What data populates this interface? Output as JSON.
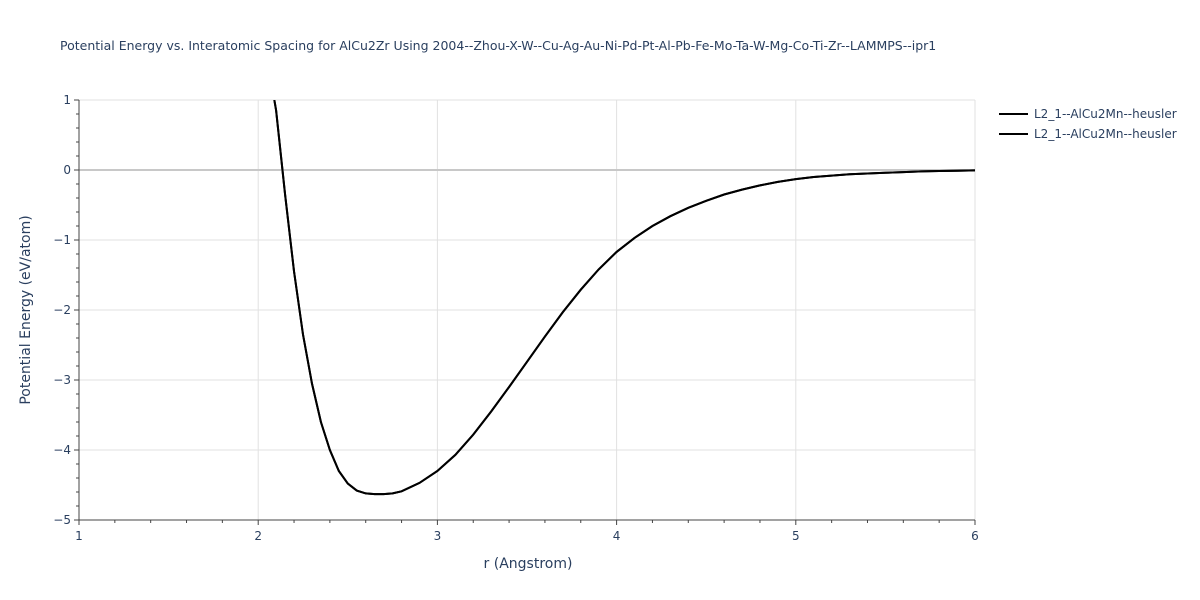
{
  "chart_data": {
    "type": "line",
    "title": "Potential Energy vs. Interatomic Spacing for AlCu2Zr Using 2004--Zhou-X-W--Cu-Ag-Au-Ni-Pd-Pt-Al-Pb-Fe-Mo-Ta-W-Mg-Co-Ti-Zr--LAMMPS--ipr1",
    "xlabel": "r (Angstrom)",
    "ylabel": "Potential Energy (eV/atom)",
    "xlim": [
      1,
      6
    ],
    "ylim": [
      -5,
      1
    ],
    "x_ticks": [
      1,
      2,
      3,
      4,
      5,
      6
    ],
    "x_tick_labels": [
      "1",
      "2",
      "3",
      "4",
      "5",
      "6"
    ],
    "y_ticks": [
      1,
      0,
      -1,
      -2,
      -3,
      -4,
      -5
    ],
    "y_tick_labels": [
      "1",
      "0",
      "−1",
      "−2",
      "−3",
      "−4",
      "−5"
    ],
    "grid": true,
    "legend_position": "top-right",
    "series": [
      {
        "name": "L2_1--AlCu2Mn--heusler",
        "color": "#000000",
        "x": [
          2.09,
          2.1,
          2.15,
          2.2,
          2.25,
          2.3,
          2.35,
          2.4,
          2.45,
          2.5,
          2.55,
          2.6,
          2.65,
          2.7,
          2.75,
          2.8,
          2.9,
          3.0,
          3.1,
          3.2,
          3.3,
          3.4,
          3.5,
          3.6,
          3.7,
          3.8,
          3.9,
          4.0,
          4.1,
          4.2,
          4.3,
          4.4,
          4.5,
          4.6,
          4.7,
          4.8,
          4.9,
          5.0,
          5.1,
          5.2,
          5.3,
          5.4,
          5.5,
          5.6,
          5.7,
          5.8,
          5.9,
          6.0
        ],
        "y": [
          1.0,
          0.85,
          -0.35,
          -1.45,
          -2.35,
          -3.05,
          -3.6,
          -4.0,
          -4.3,
          -4.48,
          -4.58,
          -4.62,
          -4.63,
          -4.63,
          -4.62,
          -4.59,
          -4.47,
          -4.3,
          -4.07,
          -3.78,
          -3.45,
          -3.1,
          -2.74,
          -2.38,
          -2.03,
          -1.71,
          -1.42,
          -1.17,
          -0.97,
          -0.8,
          -0.66,
          -0.54,
          -0.44,
          -0.35,
          -0.28,
          -0.22,
          -0.17,
          -0.13,
          -0.1,
          -0.08,
          -0.06,
          -0.05,
          -0.04,
          -0.03,
          -0.02,
          -0.015,
          -0.01,
          -0.005
        ]
      },
      {
        "name": "L2_1--AlCu2Mn--heusler",
        "color": "#000000",
        "x": [
          2.09,
          2.1,
          2.15,
          2.2,
          2.25,
          2.3,
          2.35,
          2.4,
          2.45,
          2.5,
          2.55,
          2.6,
          2.65,
          2.7,
          2.75,
          2.8,
          2.9,
          3.0,
          3.1,
          3.2,
          3.3,
          3.4,
          3.5,
          3.6,
          3.7,
          3.8,
          3.9,
          4.0,
          4.1,
          4.2,
          4.3,
          4.4,
          4.5,
          4.6,
          4.7,
          4.8,
          4.9,
          5.0,
          5.1,
          5.2,
          5.3,
          5.4,
          5.5,
          5.6,
          5.7,
          5.8,
          5.9,
          6.0
        ],
        "y": [
          1.0,
          0.85,
          -0.35,
          -1.45,
          -2.35,
          -3.05,
          -3.6,
          -4.0,
          -4.3,
          -4.48,
          -4.58,
          -4.62,
          -4.63,
          -4.63,
          -4.62,
          -4.59,
          -4.47,
          -4.3,
          -4.07,
          -3.78,
          -3.45,
          -3.1,
          -2.74,
          -2.38,
          -2.03,
          -1.71,
          -1.42,
          -1.17,
          -0.97,
          -0.8,
          -0.66,
          -0.54,
          -0.44,
          -0.35,
          -0.28,
          -0.22,
          -0.17,
          -0.13,
          -0.1,
          -0.08,
          -0.06,
          -0.05,
          -0.04,
          -0.03,
          -0.02,
          -0.015,
          -0.01,
          -0.005
        ]
      }
    ]
  }
}
